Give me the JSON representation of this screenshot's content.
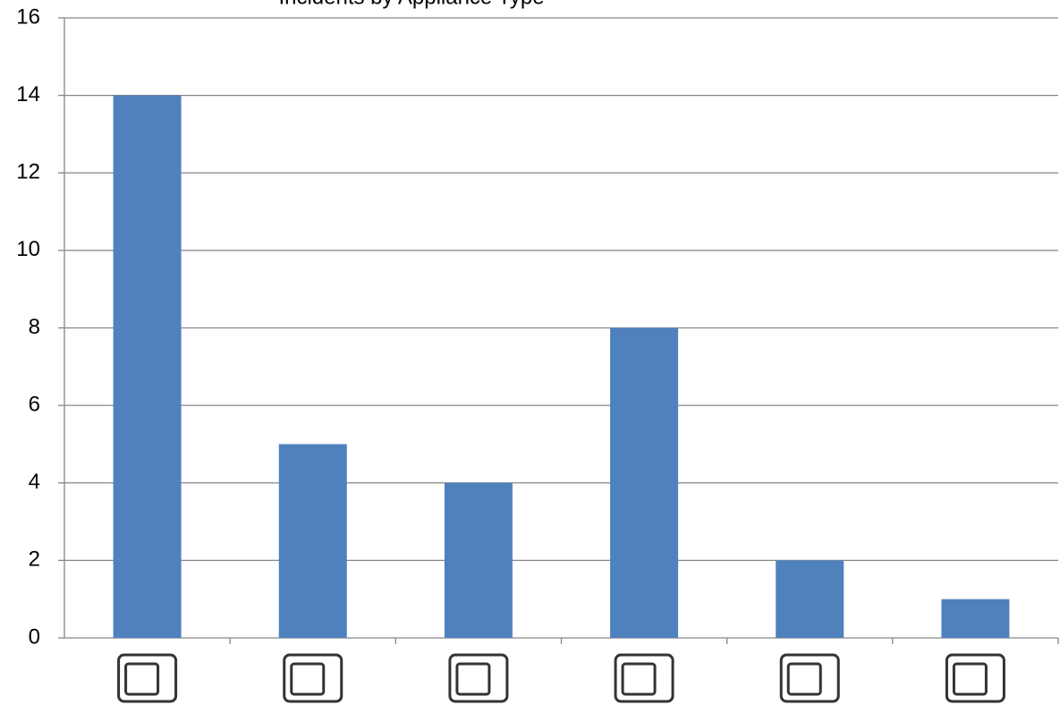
{
  "chart_data": {
    "type": "bar",
    "title": "Incidents by Appliance Type",
    "categories": [
      null,
      null,
      null,
      null,
      null,
      null
    ],
    "values": [
      14,
      5,
      4,
      8,
      2,
      1
    ],
    "color": "#4f81bd",
    "ylim": [
      0,
      16
    ],
    "yticks": [
      0,
      2,
      4,
      6,
      8,
      10,
      12,
      14,
      16
    ],
    "grid": true
  }
}
